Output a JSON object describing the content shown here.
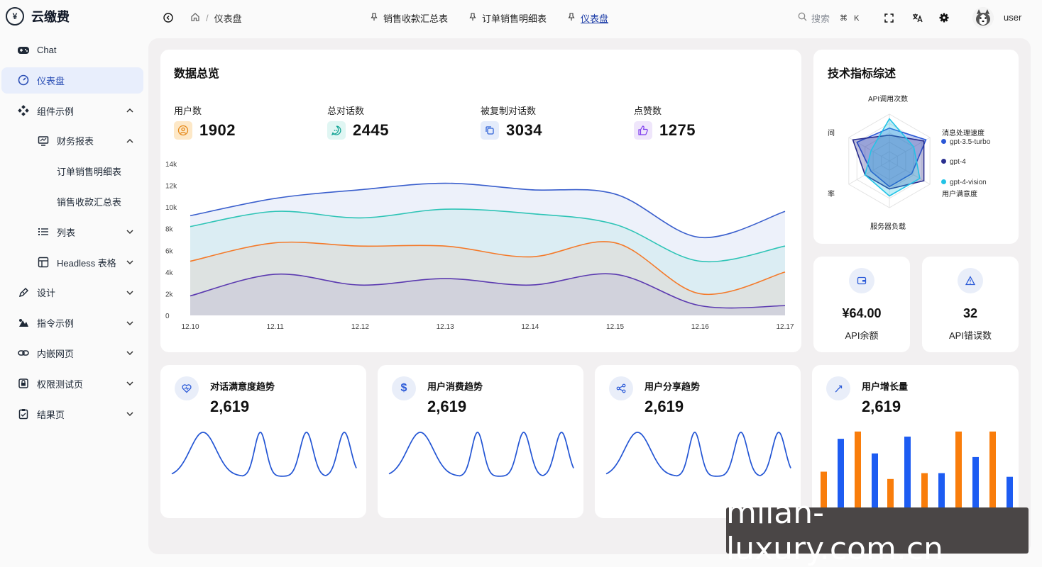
{
  "app": {
    "title": "云缴费",
    "logo_glyph": "¥"
  },
  "sidebar": {
    "items": [
      {
        "label": "Chat",
        "icon": "gamepad-icon"
      },
      {
        "label": "仪表盘",
        "icon": "dashboard-icon",
        "active": true
      },
      {
        "label": "组件示例",
        "icon": "components-icon"
      },
      {
        "label": "财务报表",
        "icon": "monitor-icon"
      },
      {
        "label": "订单销售明细表"
      },
      {
        "label": "销售收款汇总表"
      },
      {
        "label": "列表",
        "icon": "list-icon"
      },
      {
        "label": "Headless 表格",
        "icon": "table-icon"
      },
      {
        "label": "设计",
        "icon": "pen-icon"
      },
      {
        "label": "指令示例",
        "icon": "command-icon"
      },
      {
        "label": "内嵌网页",
        "icon": "link-icon"
      },
      {
        "label": "权限测试页",
        "icon": "lock-icon"
      },
      {
        "label": "结果页",
        "icon": "clipboard-icon"
      }
    ]
  },
  "header": {
    "breadcrumb": {
      "sep": "/",
      "current": "仪表盘"
    },
    "tabs": [
      {
        "label": "销售收款汇总表"
      },
      {
        "label": "订单销售明细表"
      },
      {
        "label": "仪表盘",
        "current": true
      }
    ],
    "search": {
      "placeholder": "搜索",
      "shortcut": "⌘ K"
    },
    "username": "user"
  },
  "overview": {
    "title": "数据总览",
    "stats": [
      {
        "label": "用户数",
        "value": "1902",
        "icon": "user-icon",
        "color": "#f59e0b"
      },
      {
        "label": "总对话数",
        "value": "2445",
        "icon": "chat-icon",
        "color": "#14b8a6"
      },
      {
        "label": "被复制对话数",
        "value": "3034",
        "icon": "copy-icon",
        "color": "#3b82f6"
      },
      {
        "label": "点赞数",
        "value": "1275",
        "icon": "thumbs-up-icon",
        "color": "#8b5cf6"
      }
    ]
  },
  "chart_data": [
    {
      "type": "area",
      "x": [
        "12.10",
        "12.11",
        "12.12",
        "12.13",
        "12.14",
        "12.15",
        "12.16",
        "12.17"
      ],
      "ylim": [
        0,
        14000
      ],
      "yticks": [
        "0",
        "2k",
        "4k",
        "6k",
        "8k",
        "10k",
        "12k",
        "14k"
      ],
      "series": [
        {
          "color": "#3a5fcd",
          "values": [
            9200,
            10800,
            11600,
            12200,
            11600,
            11200,
            7200,
            9600
          ]
        },
        {
          "color": "#2ec4b6",
          "values": [
            8200,
            9600,
            9000,
            9800,
            9400,
            8400,
            5000,
            6400
          ]
        },
        {
          "color": "#f47a2a",
          "values": [
            5000,
            6700,
            6400,
            6400,
            5400,
            6700,
            2000,
            4000
          ]
        },
        {
          "color": "#5b3ab0",
          "values": [
            1800,
            3800,
            2800,
            3400,
            2800,
            3800,
            900,
            900
          ]
        }
      ]
    },
    {
      "type": "radar",
      "indicators": [
        "API调用次数",
        "消息处理速度",
        "用户满意度",
        "服务器负载",
        "错误率",
        "响应时间"
      ],
      "series": [
        {
          "name": "gpt-3.5-turbo",
          "color": "#2b57d6",
          "values": [
            0.7,
            0.9,
            0.55,
            0.55,
            0.45,
            0.8
          ]
        },
        {
          "name": "gpt-4",
          "color": "#2a2f8f",
          "values": [
            0.55,
            0.85,
            0.85,
            0.6,
            0.6,
            0.9
          ]
        },
        {
          "name": "gpt-4-vision",
          "color": "#22c3e6",
          "values": [
            0.9,
            0.6,
            0.75,
            0.75,
            0.6,
            0.45
          ]
        }
      ]
    },
    {
      "type": "bar",
      "series": [
        {
          "color": "#f97d0b",
          "values": [
            50,
            105,
            40,
            48,
            105,
            105
          ]
        },
        {
          "color": "#1d5cf2",
          "values": [
            95,
            75,
            98,
            48,
            70,
            43
          ]
        }
      ]
    }
  ],
  "tech": {
    "title": "技术指标综述",
    "labels": {
      "api": "API调用次数",
      "speed": "消息处理速度",
      "sat": "用户满意度",
      "load": "服务器负载",
      "err": "率",
      "resp": "间"
    }
  },
  "mini": [
    {
      "value": "¥64.00",
      "caption": "API余额",
      "icon": "wallet-icon"
    },
    {
      "value": "32",
      "caption": "API错误数",
      "icon": "warning-icon"
    }
  ],
  "trends": [
    {
      "title": "对话满意度趋势",
      "value": "2,619",
      "icon": "heart-pulse-icon"
    },
    {
      "title": "用户消费趋势",
      "value": "2,619",
      "icon": "dollar-icon"
    },
    {
      "title": "用户分享趋势",
      "value": "2,619",
      "icon": "share-icon"
    },
    {
      "title": "用户增长量",
      "value": "2,619",
      "icon": "growth-icon"
    }
  ],
  "watermark": "milan-luxury.com.cn"
}
